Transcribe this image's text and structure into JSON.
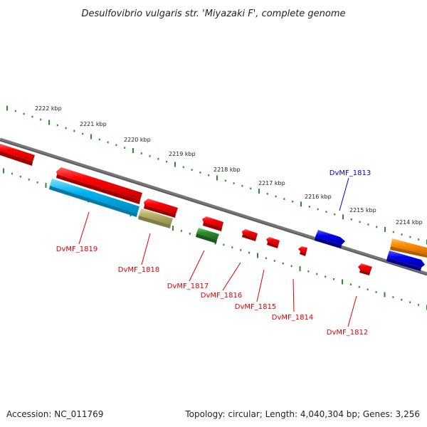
{
  "title": "Desulfovibrio vulgaris str. 'Miyazaki F', complete genome",
  "footer": {
    "accession": "Accession: NC_011769",
    "summary": "Topology: circular; Length: 4,040,304 bp; Genes: 3,256"
  },
  "scale": {
    "labels": [
      "2222 kbp",
      "2221 kbp",
      "2220 kbp",
      "2219 kbp",
      "2218 kbp",
      "2217 kbp",
      "2216 kbp",
      "2215 kbp",
      "2214 kbp"
    ]
  },
  "genes": [
    {
      "name": "DvMF_1819",
      "label": "DvMF_1819",
      "color": "#00b2ee"
    },
    {
      "name": "DvMF_1818",
      "label": "DvMF_1818",
      "color": "#b5b16a"
    },
    {
      "name": "DvMF_1817",
      "label": "DvMF_1817",
      "color": "#2e8b2e"
    },
    {
      "name": "DvMF_1816",
      "label": "DvMF_1816",
      "color": "#ff0000"
    },
    {
      "name": "DvMF_1815",
      "label": "DvMF_1815",
      "color": "#ff0000"
    },
    {
      "name": "DvMF_1814",
      "label": "DvMF_1814",
      "color": "#ff0000"
    },
    {
      "name": "DvMF_1813",
      "label": "DvMF_1813",
      "color": "#0000ee"
    },
    {
      "name": "DvMF_1812",
      "label": "DvMF_1812",
      "color": "#ff0000"
    }
  ],
  "colors": {
    "backbone": "#777777",
    "tick": "#2e8b2e",
    "label_red": "#dd0000",
    "label_blue": "#0000cc",
    "orange": "#ff8c00"
  }
}
